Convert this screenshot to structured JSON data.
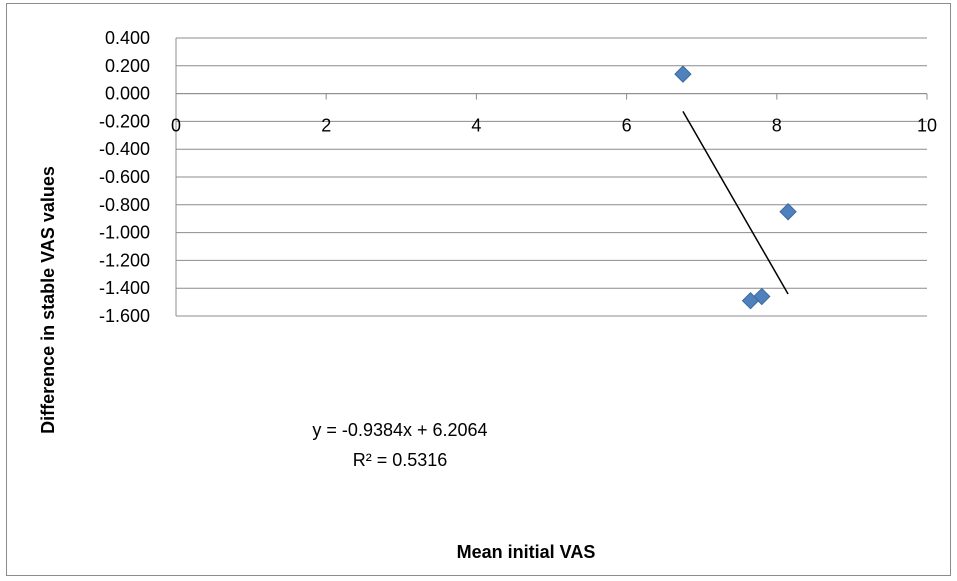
{
  "chart_data": {
    "type": "scatter",
    "title": "",
    "xlabel": "Mean initial VAS",
    "ylabel": "Difference in stable VAS values",
    "xlim": [
      0,
      10
    ],
    "ylim": [
      -1.6,
      0.4
    ],
    "x_ticks": [
      "0",
      "2",
      "4",
      "6",
      "8",
      "10"
    ],
    "y_ticks": [
      "0.400",
      "0.200",
      "0.000",
      "-0.200",
      "-0.400",
      "-0.600",
      "-0.800",
      "-1.000",
      "-1.200",
      "-1.400",
      "-1.600"
    ],
    "grid": "horizontal",
    "legend": "none",
    "series": [
      {
        "points": [
          {
            "x": 6.75,
            "y": 0.14
          },
          {
            "x": 8.15,
            "y": -0.85
          },
          {
            "x": 7.8,
            "y": -1.46
          },
          {
            "x": 7.65,
            "y": -1.49
          }
        ],
        "marker": "diamond",
        "color": "#4f81bd"
      }
    ],
    "trendline": {
      "type": "linear",
      "slope": -0.9384,
      "intercept": 6.2064,
      "x_range": [
        6.75,
        8.15
      ],
      "color": "#000000",
      "equation": "y = -0.9384x + 6.2064",
      "r_squared": "R² = 0.5316"
    }
  }
}
